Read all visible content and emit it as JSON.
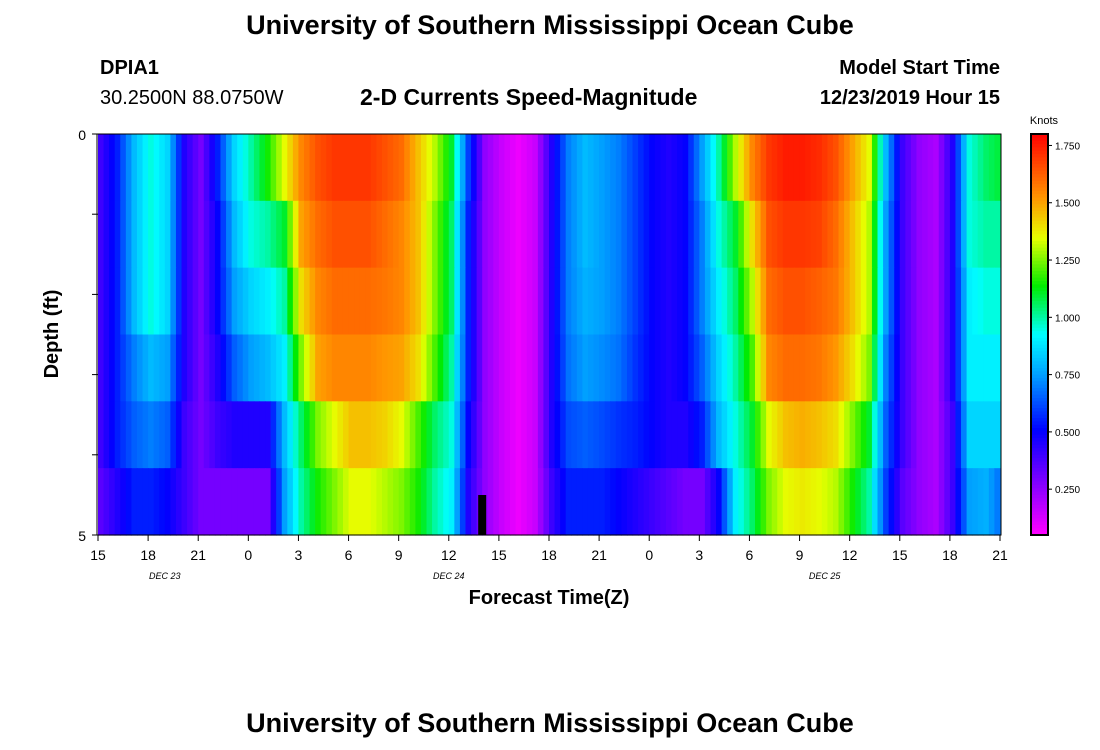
{
  "page": {
    "title": "University of Southern Mississippi Ocean Cube",
    "footer_title": "University of Southern Mississippi Ocean Cube",
    "station": "DPIA1",
    "location": "30.2500N 88.0750W",
    "plot_title": "2-D Currents Speed-Magnitude",
    "model_start_label": "Model Start Time",
    "model_start_value": "12/23/2019 Hour 15"
  },
  "chart_data": {
    "type": "heatmap",
    "title": "2-D Currents Speed-Magnitude",
    "xlabel": "Forecast Time(Z)",
    "ylabel": "Depth (ft)",
    "ylim": [
      0,
      5
    ],
    "y_tick_labels": [
      "0",
      "5"
    ],
    "hours_span": 54,
    "x_tick_labels": [
      "15",
      "18",
      "21",
      "0",
      "3",
      "6",
      "9",
      "12",
      "15",
      "18",
      "21",
      "0",
      "3",
      "6",
      "9",
      "12",
      "15",
      "18",
      "21"
    ],
    "date_labels": [
      {
        "hour": 4,
        "text": "DEC 23"
      },
      {
        "hour": 21,
        "text": "DEC 24"
      },
      {
        "hour": 43.5,
        "text": "DEC 25"
      }
    ],
    "current_time_hour": 23,
    "colorbar": {
      "unit_label": "Knots",
      "min": 0.05,
      "max": 1.8,
      "tick_labels": [
        "1.750",
        "1.500",
        "1.250",
        "1.000",
        "0.750",
        "0.500",
        "0.250"
      ],
      "tick_values": [
        1.75,
        1.5,
        1.25,
        1.0,
        0.75,
        0.5,
        0.25
      ]
    },
    "depth_layers": [
      0,
      1,
      2,
      3,
      4,
      5
    ],
    "hourly_speed_by_layer": [
      [
        0.4,
        0.55,
        0.8,
        0.95,
        0.85,
        0.45,
        0.3,
        0.55,
        0.85,
        1.0,
        1.15,
        1.35,
        1.55,
        1.65,
        1.7,
        1.7,
        1.7,
        1.65,
        1.6,
        1.45,
        1.3,
        1.1,
        0.6,
        0.25,
        0.15,
        0.08,
        0.15,
        0.45,
        0.7,
        0.8,
        0.75,
        0.7,
        0.6,
        0.5,
        0.45,
        0.5,
        0.75,
        1.0,
        1.3,
        1.55,
        1.7,
        1.75,
        1.75,
        1.72,
        1.65,
        1.5,
        1.35,
        0.8,
        0.4,
        0.25,
        0.2,
        0.45,
        0.95,
        1.05,
        1.1
      ],
      [
        0.4,
        0.55,
        0.8,
        0.95,
        0.85,
        0.45,
        0.3,
        0.5,
        0.8,
        0.95,
        1.0,
        1.1,
        1.5,
        1.6,
        1.65,
        1.65,
        1.65,
        1.6,
        1.55,
        1.45,
        1.25,
        1.05,
        0.55,
        0.25,
        0.15,
        0.08,
        0.15,
        0.45,
        0.7,
        0.8,
        0.75,
        0.7,
        0.6,
        0.5,
        0.45,
        0.5,
        0.7,
        0.95,
        1.1,
        1.4,
        1.65,
        1.7,
        1.7,
        1.68,
        1.6,
        1.45,
        1.3,
        0.75,
        0.4,
        0.25,
        0.2,
        0.45,
        0.95,
        1.0,
        1.0
      ],
      [
        0.4,
        0.55,
        0.8,
        0.95,
        0.85,
        0.45,
        0.3,
        0.5,
        0.75,
        0.85,
        0.9,
        1.0,
        1.4,
        1.55,
        1.6,
        1.6,
        1.6,
        1.58,
        1.55,
        1.45,
        1.25,
        1.05,
        0.55,
        0.25,
        0.15,
        0.08,
        0.15,
        0.45,
        0.7,
        0.78,
        0.75,
        0.7,
        0.6,
        0.5,
        0.45,
        0.5,
        0.7,
        0.9,
        1.05,
        1.3,
        1.6,
        1.65,
        1.65,
        1.62,
        1.58,
        1.45,
        1.3,
        0.75,
        0.4,
        0.25,
        0.2,
        0.45,
        0.9,
        0.95,
        0.95
      ],
      [
        0.4,
        0.55,
        0.7,
        0.8,
        0.75,
        0.45,
        0.3,
        0.45,
        0.65,
        0.75,
        0.8,
        0.9,
        1.25,
        1.5,
        1.55,
        1.55,
        1.55,
        1.52,
        1.5,
        1.4,
        1.2,
        1.0,
        0.55,
        0.25,
        0.15,
        0.08,
        0.15,
        0.45,
        0.68,
        0.75,
        0.72,
        0.68,
        0.58,
        0.5,
        0.45,
        0.5,
        0.65,
        0.85,
        1.0,
        1.2,
        1.55,
        1.6,
        1.6,
        1.58,
        1.52,
        1.4,
        1.25,
        0.7,
        0.4,
        0.25,
        0.2,
        0.45,
        0.9,
        0.9,
        0.9
      ],
      [
        0.4,
        0.55,
        0.65,
        0.7,
        0.65,
        0.4,
        0.3,
        0.4,
        0.45,
        0.45,
        0.45,
        0.8,
        1.05,
        1.25,
        1.35,
        1.45,
        1.45,
        1.42,
        1.35,
        1.2,
        1.05,
        0.95,
        0.5,
        0.25,
        0.15,
        0.08,
        0.15,
        0.45,
        0.62,
        0.65,
        0.62,
        0.58,
        0.55,
        0.5,
        0.45,
        0.45,
        0.55,
        0.8,
        0.95,
        1.1,
        1.35,
        1.45,
        1.48,
        1.45,
        1.4,
        1.25,
        1.1,
        0.65,
        0.4,
        0.25,
        0.2,
        0.4,
        0.85,
        0.85,
        0.85
      ],
      [
        0.35,
        0.45,
        0.55,
        0.55,
        0.5,
        0.4,
        0.3,
        0.3,
        0.3,
        0.3,
        0.3,
        0.75,
        1.0,
        1.15,
        1.25,
        1.35,
        1.35,
        1.3,
        1.25,
        1.15,
        1.0,
        0.9,
        0.45,
        0.25,
        0.15,
        0.08,
        0.15,
        0.4,
        0.55,
        0.55,
        0.55,
        0.5,
        0.45,
        0.4,
        0.35,
        0.3,
        0.3,
        0.5,
        0.9,
        1.05,
        1.25,
        1.35,
        1.38,
        1.35,
        1.3,
        1.15,
        1.0,
        0.6,
        0.35,
        0.25,
        0.2,
        0.4,
        0.75,
        0.78,
        0.65
      ]
    ]
  }
}
